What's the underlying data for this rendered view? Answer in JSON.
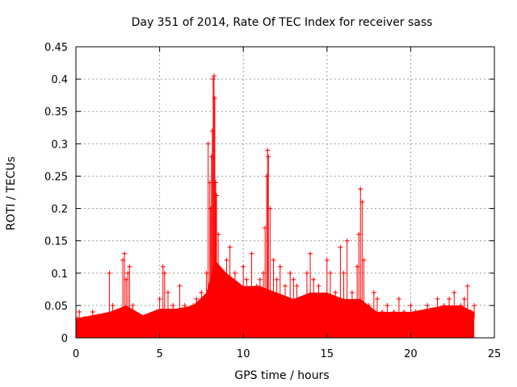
{
  "chart_data": {
    "type": "scatter",
    "title": "Day 351 of 2014, Rate Of TEC Index for receiver sass",
    "xlabel": "GPS time / hours",
    "ylabel": "ROTI / TECUs",
    "xlim": [
      0,
      25
    ],
    "ylim": [
      0,
      0.45
    ],
    "xticks": [
      0,
      5,
      10,
      15,
      20,
      25
    ],
    "yticks": [
      0,
      0.05,
      0.1,
      0.15,
      0.2,
      0.25,
      0.3,
      0.35,
      0.4,
      0.45
    ],
    "xtick_labels": [
      "0",
      "5",
      "10",
      "15",
      "20",
      "25"
    ],
    "ytick_labels": [
      "0",
      "0.05",
      "0.1",
      "0.15",
      "0.2",
      "0.25",
      "0.3",
      "0.35",
      "0.4",
      "0.45"
    ],
    "grid": true,
    "marker": "+",
    "series": [
      {
        "name": "ROTI",
        "color": "#ff0000",
        "x": [
          0.1,
          0.2,
          0.3,
          0.5,
          0.8,
          1.0,
          1.3,
          1.6,
          1.9,
          2.0,
          2.2,
          2.5,
          2.8,
          2.9,
          3.0,
          3.1,
          3.2,
          3.4,
          3.6,
          3.9,
          4.2,
          4.5,
          4.8,
          5.0,
          5.2,
          5.3,
          5.5,
          5.8,
          6.0,
          6.2,
          6.5,
          6.8,
          7.0,
          7.2,
          7.5,
          7.8,
          7.9,
          8.0,
          8.05,
          8.1,
          8.15,
          8.2,
          8.25,
          8.3,
          8.35,
          8.4,
          8.5,
          8.6,
          8.8,
          9.0,
          9.2,
          9.5,
          9.8,
          10.0,
          10.2,
          10.5,
          10.8,
          11.0,
          11.2,
          11.3,
          11.4,
          11.45,
          11.5,
          11.6,
          11.8,
          12.0,
          12.2,
          12.5,
          12.8,
          13.0,
          13.2,
          13.5,
          13.8,
          14.0,
          14.2,
          14.5,
          14.8,
          15.0,
          15.2,
          15.5,
          15.8,
          16.0,
          16.2,
          16.5,
          16.8,
          16.9,
          17.0,
          17.1,
          17.2,
          17.5,
          17.8,
          18.0,
          18.3,
          18.6,
          19.0,
          19.3,
          19.6,
          20.0,
          20.3,
          20.6,
          21.0,
          21.3,
          21.6,
          22.0,
          22.3,
          22.6,
          23.0,
          23.2,
          23.4,
          23.6,
          23.8
        ],
        "y": [
          0.03,
          0.04,
          0.02,
          0.03,
          0.02,
          0.04,
          0.03,
          0.03,
          0.02,
          0.1,
          0.05,
          0.03,
          0.12,
          0.13,
          0.09,
          0.1,
          0.11,
          0.05,
          0.03,
          0.02,
          0.03,
          0.02,
          0.04,
          0.06,
          0.11,
          0.1,
          0.07,
          0.05,
          0.04,
          0.08,
          0.05,
          0.03,
          0.05,
          0.06,
          0.07,
          0.1,
          0.3,
          0.24,
          0.2,
          0.28,
          0.32,
          0.4,
          0.405,
          0.37,
          0.24,
          0.22,
          0.16,
          0.1,
          0.08,
          0.12,
          0.14,
          0.1,
          0.08,
          0.11,
          0.09,
          0.13,
          0.08,
          0.09,
          0.1,
          0.17,
          0.25,
          0.29,
          0.28,
          0.2,
          0.12,
          0.09,
          0.11,
          0.08,
          0.1,
          0.09,
          0.08,
          0.06,
          0.1,
          0.13,
          0.09,
          0.08,
          0.06,
          0.12,
          0.1,
          0.07,
          0.14,
          0.1,
          0.15,
          0.07,
          0.11,
          0.16,
          0.23,
          0.21,
          0.12,
          0.05,
          0.07,
          0.06,
          0.04,
          0.05,
          0.04,
          0.06,
          0.04,
          0.05,
          0.04,
          0.03,
          0.05,
          0.04,
          0.06,
          0.05,
          0.06,
          0.07,
          0.05,
          0.06,
          0.08,
          0.04,
          0.05
        ],
        "band": {
          "description": "dense scatter envelope",
          "t": [
            0,
            1,
            2,
            3,
            4,
            5,
            6,
            7,
            7.8,
            8.3,
            9,
            10,
            11,
            12,
            13,
            14,
            15,
            16,
            17,
            18,
            19,
            20,
            21,
            22,
            23,
            23.8
          ],
          "low": [
            0,
            0,
            0,
            0,
            0,
            0,
            0,
            0,
            0,
            0,
            0,
            0,
            0,
            0,
            0,
            0,
            0,
            0,
            0,
            0,
            0,
            0,
            0,
            0,
            0,
            0
          ],
          "high": [
            0.03,
            0.035,
            0.04,
            0.05,
            0.035,
            0.045,
            0.045,
            0.05,
            0.07,
            0.12,
            0.1,
            0.08,
            0.08,
            0.07,
            0.06,
            0.07,
            0.07,
            0.06,
            0.06,
            0.04,
            0.04,
            0.04,
            0.045,
            0.05,
            0.05,
            0.04
          ]
        }
      }
    ]
  }
}
